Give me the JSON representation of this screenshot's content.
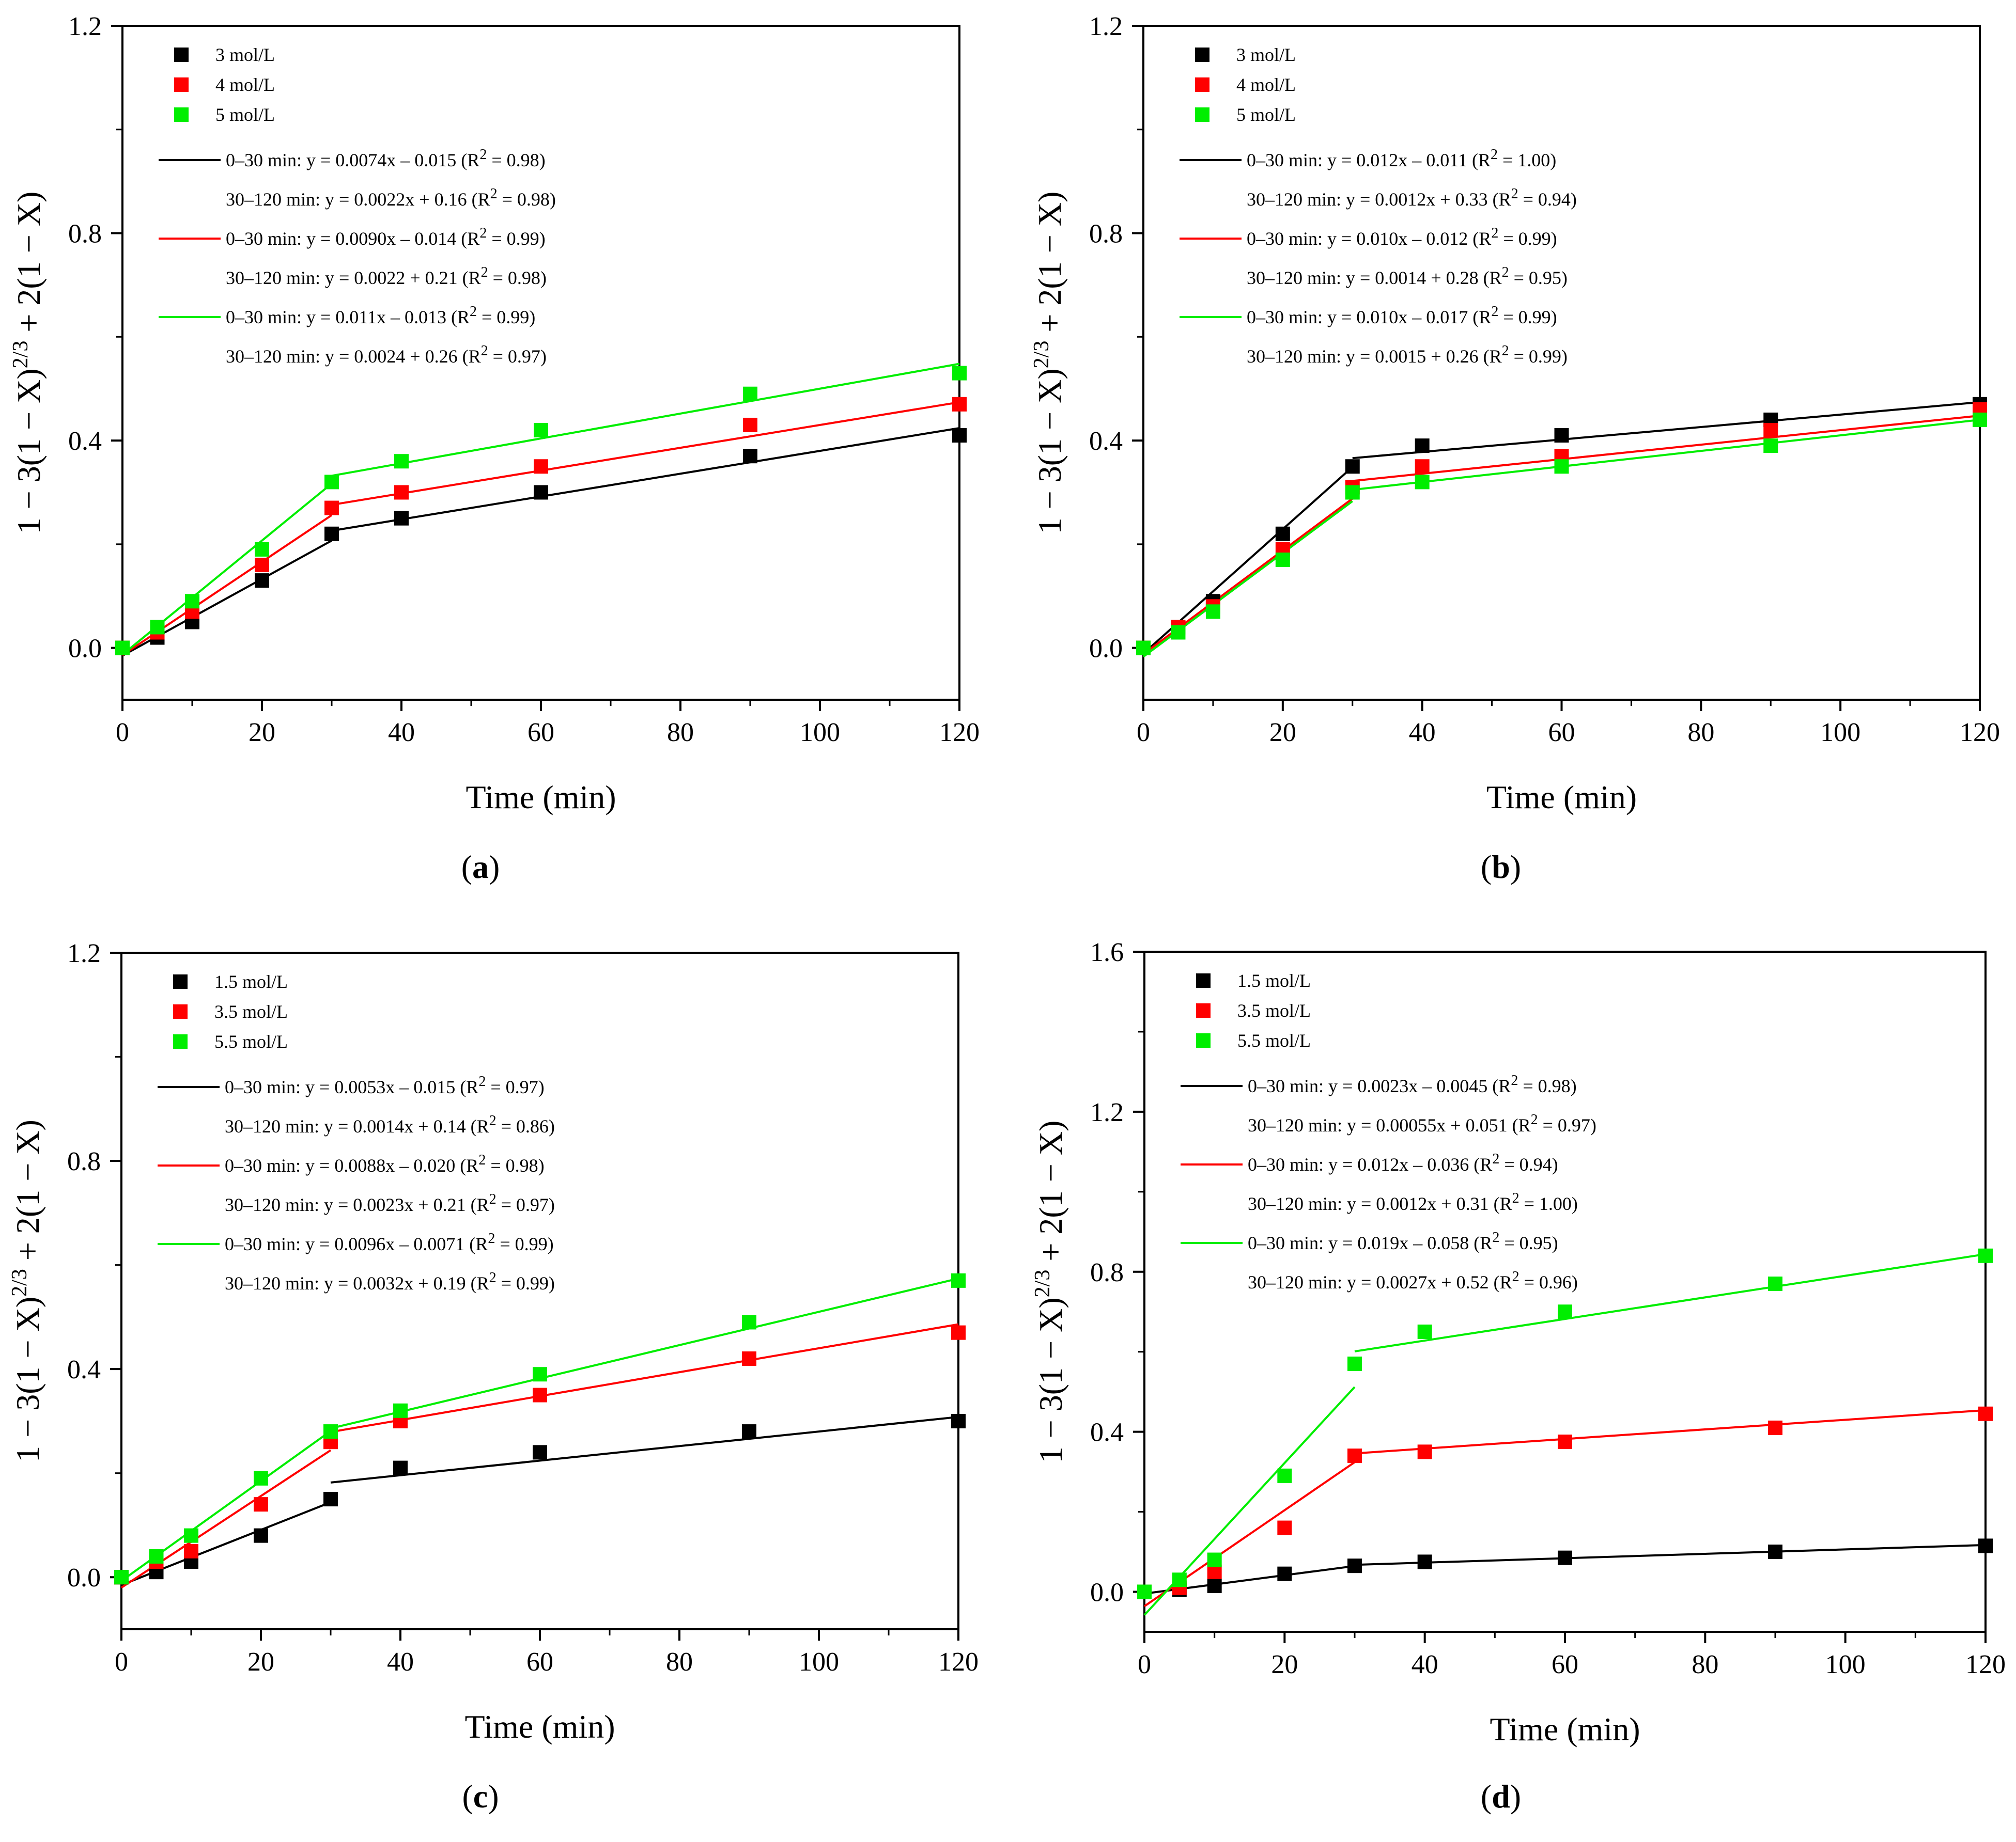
{
  "chart_data": [
    {
      "panel": "a",
      "type": "scatter",
      "xlabel": "Time (min)",
      "ylabel": "1 − 3(1 − X)^2/3 + 2(1 − X)",
      "xlim": [
        0,
        120
      ],
      "ylim": [
        -0.1,
        1.2
      ],
      "xticks": [
        "0",
        "20",
        "40",
        "60",
        "80",
        "100",
        "120"
      ],
      "yticks": [
        "0.0",
        "0.4",
        "0.8",
        "1.2"
      ],
      "x": [
        0,
        5,
        10,
        20,
        30,
        40,
        60,
        90,
        120
      ],
      "series": [
        {
          "name": "3 mol/L",
          "color": "#000000",
          "values": [
            0.0,
            0.02,
            0.05,
            0.13,
            0.22,
            0.25,
            0.3,
            0.37,
            0.41
          ],
          "fits": [
            {
              "label": "0–30 min: y = 0.0074x – 0.015 (R2 = 0.98)",
              "slope": 0.0074,
              "intercept": -0.015,
              "x0": 0,
              "x1": 30
            },
            {
              "label": "30–120 min: y = 0.0022x + 0.16 (R2 = 0.98)",
              "slope": 0.0022,
              "intercept": 0.16,
              "x0": 30,
              "x1": 120
            }
          ]
        },
        {
          "name": "4 mol/L",
          "color": "#ff0000",
          "values": [
            0.0,
            0.03,
            0.07,
            0.16,
            0.27,
            0.3,
            0.35,
            0.43,
            0.47
          ],
          "fits": [
            {
              "label": "0–30 min: y = 0.0090x – 0.014 (R2 = 0.99)",
              "slope": 0.009,
              "intercept": -0.014,
              "x0": 0,
              "x1": 30
            },
            {
              "label": "30–120 min: y = 0.0022 + 0.21 (R2 = 0.98)",
              "slope": 0.0022,
              "intercept": 0.21,
              "x0": 30,
              "x1": 120
            }
          ]
        },
        {
          "name": "5 mol/L",
          "color": "#00ee00",
          "values": [
            0.0,
            0.04,
            0.09,
            0.19,
            0.32,
            0.36,
            0.42,
            0.49,
            0.53
          ],
          "fits": [
            {
              "label": "0–30 min: y = 0.011x – 0.013 (R2 = 0.99)",
              "slope": 0.011,
              "intercept": -0.013,
              "x0": 0,
              "x1": 30
            },
            {
              "label": "30–120 min: y = 0.0024 + 0.26 (R2 = 0.97)",
              "slope": 0.0024,
              "intercept": 0.26,
              "x0": 30,
              "x1": 120
            }
          ]
        }
      ]
    },
    {
      "panel": "b",
      "type": "scatter",
      "xlabel": "Time (min)",
      "ylabel": "1 − 3(1 − X)^2/3 + 2(1 − X)",
      "xlim": [
        0,
        120
      ],
      "ylim": [
        -0.1,
        1.2
      ],
      "xticks": [
        "0",
        "20",
        "40",
        "60",
        "80",
        "100",
        "120"
      ],
      "yticks": [
        "0.0",
        "0.4",
        "0.8",
        "1.2"
      ],
      "x": [
        0,
        5,
        10,
        20,
        30,
        40,
        60,
        90,
        120
      ],
      "series": [
        {
          "name": "3 mol/L",
          "color": "#000000",
          "values": [
            0.0,
            0.04,
            0.09,
            0.22,
            0.35,
            0.39,
            0.41,
            0.44,
            0.47
          ],
          "fits": [
            {
              "label": "0–30 min: y = 0.012x – 0.011 (R2 = 1.00)",
              "slope": 0.012,
              "intercept": -0.011,
              "x0": 0,
              "x1": 30
            },
            {
              "label": "30–120 min: y = 0.0012x + 0.33 (R2 = 0.94)",
              "slope": 0.0012,
              "intercept": 0.33,
              "x0": 30,
              "x1": 120
            }
          ]
        },
        {
          "name": "4 mol/L",
          "color": "#ff0000",
          "values": [
            0.0,
            0.04,
            0.08,
            0.19,
            0.31,
            0.35,
            0.37,
            0.42,
            0.46
          ],
          "fits": [
            {
              "label": "0–30 min: y = 0.010x – 0.012 (R2 = 0.99)",
              "slope": 0.01,
              "intercept": -0.012,
              "x0": 0,
              "x1": 30
            },
            {
              "label": "30–120 min: y = 0.0014 + 0.28 (R2 = 0.95)",
              "slope": 0.0014,
              "intercept": 0.28,
              "x0": 30,
              "x1": 120
            }
          ]
        },
        {
          "name": "5 mol/L",
          "color": "#00ee00",
          "values": [
            0.0,
            0.03,
            0.07,
            0.17,
            0.3,
            0.32,
            0.35,
            0.39,
            0.44
          ],
          "fits": [
            {
              "label": "0–30 min: y = 0.010x – 0.017 (R2 = 0.99)",
              "slope": 0.01,
              "intercept": -0.017,
              "x0": 0,
              "x1": 30
            },
            {
              "label": "30–120 min: y = 0.0015 + 0.26 (R2 = 0.99)",
              "slope": 0.0015,
              "intercept": 0.26,
              "x0": 30,
              "x1": 120
            }
          ]
        }
      ]
    },
    {
      "panel": "c",
      "type": "scatter",
      "xlabel": "Time (min)",
      "ylabel": "1 − 3(1 − X)^2/3 + 2(1 − X)",
      "xlim": [
        0,
        120
      ],
      "ylim": [
        -0.1,
        1.2
      ],
      "xticks": [
        "0",
        "20",
        "40",
        "60",
        "80",
        "100",
        "120"
      ],
      "yticks": [
        "0.0",
        "0.4",
        "0.8",
        "1.2"
      ],
      "x": [
        0,
        5,
        10,
        20,
        30,
        40,
        60,
        90,
        120
      ],
      "series": [
        {
          "name": "1.5 mol/L",
          "color": "#000000",
          "values": [
            0.0,
            0.01,
            0.03,
            0.08,
            0.15,
            0.21,
            0.24,
            0.28,
            0.3
          ],
          "fits": [
            {
              "label": "0–30 min: y = 0.0053x – 0.015 (R2 = 0.97)",
              "slope": 0.0053,
              "intercept": -0.015,
              "x0": 0,
              "x1": 30
            },
            {
              "label": "30–120 min: y = 0.0014x + 0.14 (R2 = 0.86)",
              "slope": 0.0014,
              "intercept": 0.14,
              "x0": 30,
              "x1": 120
            }
          ]
        },
        {
          "name": "3.5 mol/L",
          "color": "#ff0000",
          "values": [
            0.0,
            0.03,
            0.05,
            0.14,
            0.26,
            0.3,
            0.35,
            0.42,
            0.47
          ],
          "fits": [
            {
              "label": "0–30 min: y = 0.0088x – 0.020 (R2 = 0.98)",
              "slope": 0.0088,
              "intercept": -0.02,
              "x0": 0,
              "x1": 30
            },
            {
              "label": "30–120 min: y = 0.0023x + 0.21 (R2 = 0.97)",
              "slope": 0.0023,
              "intercept": 0.21,
              "x0": 30,
              "x1": 120
            }
          ]
        },
        {
          "name": "5.5 mol/L",
          "color": "#00ee00",
          "values": [
            0.0,
            0.04,
            0.08,
            0.19,
            0.28,
            0.32,
            0.39,
            0.49,
            0.57
          ],
          "fits": [
            {
              "label": "0–30 min: y = 0.0096x – 0.0071 (R2 = 0.99)",
              "slope": 0.0096,
              "intercept": -0.0071,
              "x0": 0,
              "x1": 30
            },
            {
              "label": "30–120 min: y = 0.0032x + 0.19 (R2 = 0.99)",
              "slope": 0.0032,
              "intercept": 0.19,
              "x0": 30,
              "x1": 120
            }
          ]
        }
      ]
    },
    {
      "panel": "d",
      "type": "scatter",
      "xlabel": "Time (min)",
      "ylabel": "1 − 3(1 − X)^2/3 + 2(1 − X)",
      "xlim": [
        0,
        120
      ],
      "ylim": [
        -0.1,
        1.6
      ],
      "xticks": [
        "0",
        "20",
        "40",
        "60",
        "80",
        "100",
        "120"
      ],
      "yticks": [
        "0.0",
        "0.4",
        "0.8",
        "1.2",
        "1.6"
      ],
      "x": [
        0,
        5,
        10,
        20,
        30,
        40,
        60,
        90,
        120
      ],
      "series": [
        {
          "name": "1.5 mol/L",
          "color": "#000000",
          "values": [
            0.0,
            0.005,
            0.015,
            0.045,
            0.065,
            0.075,
            0.085,
            0.1,
            0.115
          ],
          "fits": [
            {
              "label": "0–30 min: y = 0.0023x – 0.0045 (R2 = 0.98)",
              "slope": 0.0023,
              "intercept": -0.0045,
              "x0": 0,
              "x1": 30
            },
            {
              "label": "30–120 min: y = 0.00055x + 0.051 (R2 = 0.97)",
              "slope": 0.00055,
              "intercept": 0.051,
              "x0": 30,
              "x1": 120
            }
          ]
        },
        {
          "name": "3.5 mol/L",
          "color": "#ff0000",
          "values": [
            0.0,
            0.01,
            0.05,
            0.16,
            0.34,
            0.35,
            0.375,
            0.41,
            0.445
          ],
          "fits": [
            {
              "label": "0–30 min: y = 0.012x – 0.036 (R2 = 0.94)",
              "slope": 0.012,
              "intercept": -0.036,
              "x0": 0,
              "x1": 30
            },
            {
              "label": "30–120 min: y = 0.0012x + 0.31 (R2 = 1.00)",
              "slope": 0.0012,
              "intercept": 0.31,
              "x0": 30,
              "x1": 120
            }
          ]
        },
        {
          "name": "5.5 mol/L",
          "color": "#00ee00",
          "values": [
            0.0,
            0.03,
            0.08,
            0.29,
            0.57,
            0.65,
            0.7,
            0.77,
            0.84
          ],
          "fits": [
            {
              "label": "0–30 min: y = 0.019x – 0.058 (R2 = 0.95)",
              "slope": 0.019,
              "intercept": -0.058,
              "x0": 0,
              "x1": 30
            },
            {
              "label": "30–120 min: y = 0.0027x + 0.52 (R2 = 0.96)",
              "slope": 0.0027,
              "intercept": 0.52,
              "x0": 30,
              "x1": 120
            }
          ]
        }
      ]
    }
  ]
}
